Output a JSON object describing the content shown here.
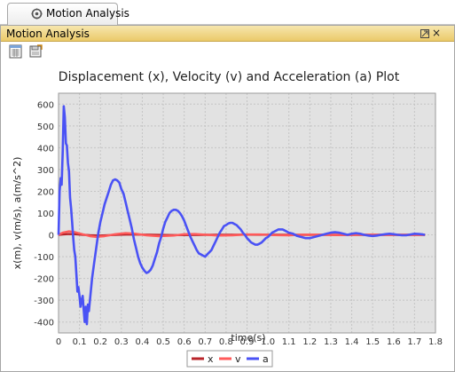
{
  "tab": {
    "label": "Motion Analysis",
    "icon": "motion-analysis-icon"
  },
  "panel": {
    "title": "Motion Analysis",
    "restore_icon": "restore-icon",
    "close_glyph": "×"
  },
  "toolbar": [
    {
      "name": "export-csv-button",
      "icon": "csv-export-icon"
    },
    {
      "name": "save-plot-button",
      "icon": "save-icon"
    }
  ],
  "chart_data": {
    "type": "line",
    "title": "Displacement (x), Velocity (v) and Acceleration (a) Plot",
    "xlabel": "time(s)",
    "ylabel": "x(m), v(m/s), a(m/s^2)",
    "xlim": [
      0,
      1.8
    ],
    "ylim": [
      -450,
      650
    ],
    "xticks": [
      "0",
      "0.1",
      "0.2",
      "0.3",
      "0.4",
      "0.5",
      "0.6",
      "0.7",
      "0.8",
      "0.9",
      "1.0",
      "1.1",
      "1.2",
      "1.3",
      "1.4",
      "1.5",
      "1.6",
      "1.7",
      "1.8"
    ],
    "yticks": [
      "-400",
      "-300",
      "-200",
      "-100",
      "0",
      "100",
      "200",
      "300",
      "400",
      "500",
      "600"
    ],
    "grid": true,
    "legend_position": "bottom",
    "series": [
      {
        "name": "x",
        "color": "#b8242a",
        "points": [
          [
            0,
            0
          ],
          [
            0.02,
            2
          ],
          [
            0.05,
            4
          ],
          [
            0.08,
            3
          ],
          [
            0.12,
            0
          ],
          [
            0.15,
            -2
          ],
          [
            0.2,
            -3
          ],
          [
            0.25,
            -1
          ],
          [
            0.3,
            1
          ],
          [
            0.35,
            2
          ],
          [
            0.45,
            0
          ],
          [
            0.55,
            -1
          ],
          [
            0.7,
            0
          ],
          [
            0.9,
            1
          ],
          [
            1.1,
            0
          ],
          [
            1.3,
            0
          ],
          [
            1.5,
            0
          ],
          [
            1.75,
            0
          ]
        ]
      },
      {
        "name": "v",
        "color": "#ff5a5a",
        "points": [
          [
            0,
            0
          ],
          [
            0.02,
            10
          ],
          [
            0.05,
            16
          ],
          [
            0.08,
            12
          ],
          [
            0.12,
            2
          ],
          [
            0.15,
            -6
          ],
          [
            0.18,
            -9
          ],
          [
            0.22,
            -6
          ],
          [
            0.27,
            3
          ],
          [
            0.32,
            8
          ],
          [
            0.36,
            6
          ],
          [
            0.42,
            -2
          ],
          [
            0.48,
            -6
          ],
          [
            0.55,
            -3
          ],
          [
            0.6,
            3
          ],
          [
            0.65,
            4
          ],
          [
            0.7,
            1
          ],
          [
            0.76,
            -3
          ],
          [
            0.83,
            -2
          ],
          [
            0.9,
            2
          ],
          [
            0.96,
            2
          ],
          [
            1.03,
            -1
          ],
          [
            1.1,
            -2
          ],
          [
            1.17,
            1
          ],
          [
            1.25,
            1
          ],
          [
            1.35,
            -1
          ],
          [
            1.45,
            1
          ],
          [
            1.55,
            0
          ],
          [
            1.65,
            0
          ],
          [
            1.75,
            0
          ]
        ]
      },
      {
        "name": "a",
        "color": "#4a52f5",
        "points": [
          [
            0,
            0
          ],
          [
            0.005,
            200
          ],
          [
            0.01,
            260
          ],
          [
            0.015,
            230
          ],
          [
            0.02,
            380
          ],
          [
            0.025,
            590
          ],
          [
            0.03,
            540
          ],
          [
            0.035,
            420
          ],
          [
            0.04,
            410
          ],
          [
            0.045,
            330
          ],
          [
            0.05,
            290
          ],
          [
            0.055,
            170
          ],
          [
            0.06,
            120
          ],
          [
            0.065,
            60
          ],
          [
            0.07,
            -10
          ],
          [
            0.075,
            -70
          ],
          [
            0.08,
            -100
          ],
          [
            0.085,
            -180
          ],
          [
            0.09,
            -260
          ],
          [
            0.095,
            -240
          ],
          [
            0.1,
            -280
          ],
          [
            0.105,
            -330
          ],
          [
            0.11,
            -300
          ],
          [
            0.115,
            -280
          ],
          [
            0.12,
            -340
          ],
          [
            0.125,
            -400
          ],
          [
            0.13,
            -330
          ],
          [
            0.135,
            -410
          ],
          [
            0.14,
            -320
          ],
          [
            0.145,
            -350
          ],
          [
            0.15,
            -300
          ],
          [
            0.16,
            -200
          ],
          [
            0.17,
            -130
          ],
          [
            0.18,
            -60
          ],
          [
            0.19,
            10
          ],
          [
            0.2,
            60
          ],
          [
            0.21,
            100
          ],
          [
            0.22,
            140
          ],
          [
            0.23,
            170
          ],
          [
            0.24,
            200
          ],
          [
            0.25,
            230
          ],
          [
            0.26,
            250
          ],
          [
            0.27,
            255
          ],
          [
            0.28,
            250
          ],
          [
            0.29,
            240
          ],
          [
            0.3,
            210
          ],
          [
            0.31,
            190
          ],
          [
            0.32,
            150
          ],
          [
            0.33,
            110
          ],
          [
            0.34,
            70
          ],
          [
            0.35,
            30
          ],
          [
            0.36,
            -20
          ],
          [
            0.37,
            -60
          ],
          [
            0.38,
            -100
          ],
          [
            0.39,
            -130
          ],
          [
            0.4,
            -150
          ],
          [
            0.41,
            -165
          ],
          [
            0.42,
            -175
          ],
          [
            0.43,
            -170
          ],
          [
            0.44,
            -160
          ],
          [
            0.45,
            -140
          ],
          [
            0.46,
            -110
          ],
          [
            0.47,
            -80
          ],
          [
            0.48,
            -40
          ],
          [
            0.49,
            -10
          ],
          [
            0.5,
            30
          ],
          [
            0.51,
            60
          ],
          [
            0.52,
            80
          ],
          [
            0.53,
            100
          ],
          [
            0.54,
            110
          ],
          [
            0.55,
            115
          ],
          [
            0.56,
            115
          ],
          [
            0.57,
            110
          ],
          [
            0.58,
            100
          ],
          [
            0.59,
            85
          ],
          [
            0.6,
            65
          ],
          [
            0.61,
            40
          ],
          [
            0.62,
            15
          ],
          [
            0.63,
            -10
          ],
          [
            0.64,
            -30
          ],
          [
            0.65,
            -50
          ],
          [
            0.66,
            -70
          ],
          [
            0.67,
            -85
          ],
          [
            0.68,
            -90
          ],
          [
            0.69,
            -95
          ],
          [
            0.7,
            -100
          ],
          [
            0.71,
            -90
          ],
          [
            0.72,
            -80
          ],
          [
            0.73,
            -70
          ],
          [
            0.74,
            -50
          ],
          [
            0.75,
            -30
          ],
          [
            0.76,
            -10
          ],
          [
            0.77,
            10
          ],
          [
            0.78,
            25
          ],
          [
            0.79,
            40
          ],
          [
            0.8,
            45
          ],
          [
            0.81,
            52
          ],
          [
            0.82,
            55
          ],
          [
            0.83,
            55
          ],
          [
            0.84,
            50
          ],
          [
            0.85,
            45
          ],
          [
            0.86,
            35
          ],
          [
            0.87,
            25
          ],
          [
            0.88,
            10
          ],
          [
            0.89,
            0
          ],
          [
            0.9,
            -15
          ],
          [
            0.91,
            -25
          ],
          [
            0.92,
            -35
          ],
          [
            0.93,
            -40
          ],
          [
            0.94,
            -45
          ],
          [
            0.95,
            -45
          ],
          [
            0.96,
            -40
          ],
          [
            0.97,
            -35
          ],
          [
            0.98,
            -25
          ],
          [
            0.99,
            -15
          ],
          [
            1.0,
            -10
          ],
          [
            1.01,
            0
          ],
          [
            1.02,
            10
          ],
          [
            1.03,
            15
          ],
          [
            1.04,
            20
          ],
          [
            1.05,
            25
          ],
          [
            1.06,
            25
          ],
          [
            1.07,
            25
          ],
          [
            1.08,
            20
          ],
          [
            1.09,
            15
          ],
          [
            1.1,
            10
          ],
          [
            1.12,
            5
          ],
          [
            1.14,
            -5
          ],
          [
            1.16,
            -10
          ],
          [
            1.18,
            -15
          ],
          [
            1.2,
            -15
          ],
          [
            1.22,
            -10
          ],
          [
            1.24,
            -5
          ],
          [
            1.26,
            0
          ],
          [
            1.28,
            5
          ],
          [
            1.3,
            10
          ],
          [
            1.32,
            12
          ],
          [
            1.34,
            10
          ],
          [
            1.36,
            5
          ],
          [
            1.38,
            0
          ],
          [
            1.4,
            5
          ],
          [
            1.42,
            8
          ],
          [
            1.44,
            5
          ],
          [
            1.46,
            0
          ],
          [
            1.48,
            -3
          ],
          [
            1.5,
            -5
          ],
          [
            1.52,
            -3
          ],
          [
            1.54,
            0
          ],
          [
            1.56,
            3
          ],
          [
            1.58,
            5
          ],
          [
            1.6,
            3
          ],
          [
            1.62,
            0
          ],
          [
            1.64,
            -2
          ],
          [
            1.66,
            -2
          ],
          [
            1.68,
            2
          ],
          [
            1.7,
            5
          ],
          [
            1.72,
            4
          ],
          [
            1.74,
            2
          ],
          [
            1.75,
            0
          ]
        ]
      }
    ]
  }
}
